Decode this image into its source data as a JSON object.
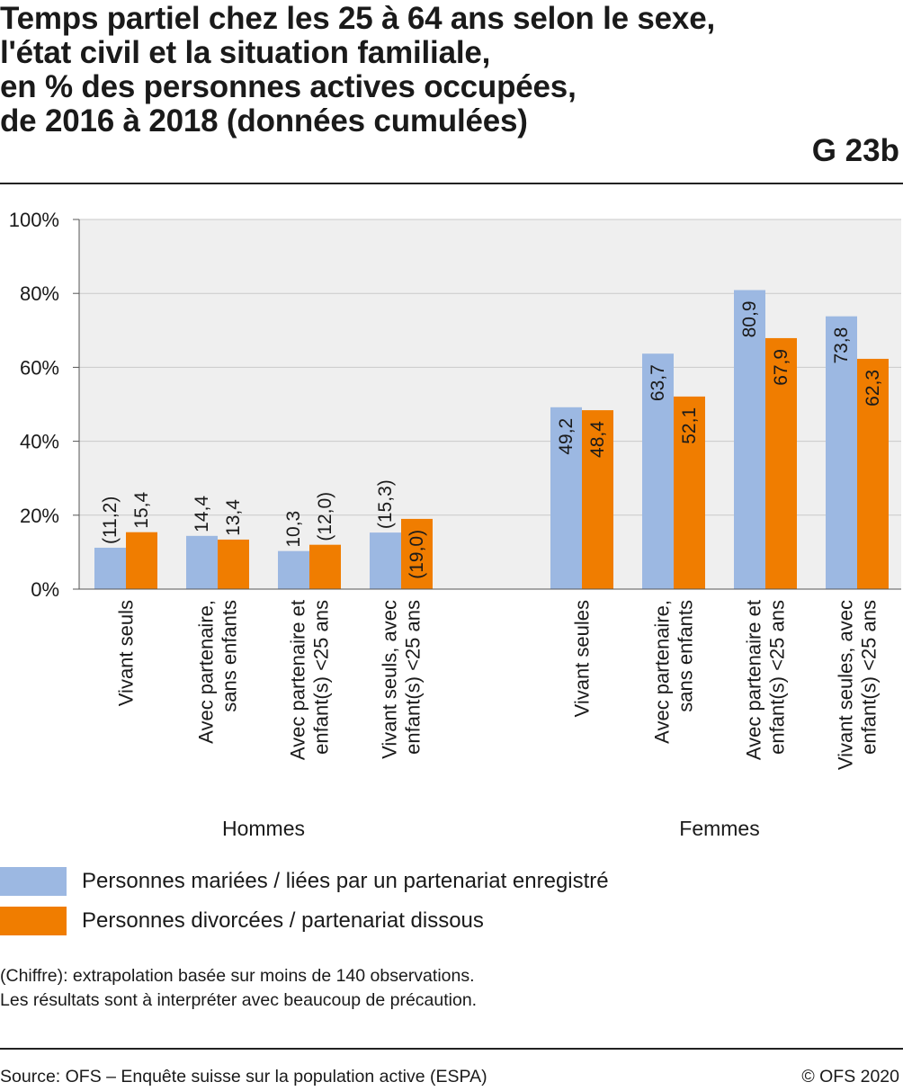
{
  "header": {
    "title_lines": [
      "Temps partiel chez les 25 à 64 ans selon le sexe,",
      "l'état civil et la situation familiale,",
      "en % des personnes actives occupées,",
      "de 2016 à 2018 (données cumulées)"
    ],
    "code": "G 23b"
  },
  "chart_data": {
    "type": "bar",
    "ylim": [
      0,
      100
    ],
    "y_ticks": [
      "0%",
      "20%",
      "40%",
      "60%",
      "80%",
      "100%"
    ],
    "grid": true,
    "legend_position": "bottom",
    "groups": [
      {
        "name": "Hommes",
        "categories": [
          "Vivant seuls",
          "Avec partenaire,\nsans enfants",
          "Avec partenaire et\nenfant(s) <25 ans",
          "Vivant seuls, avec\nenfant(s) <25 ans"
        ]
      },
      {
        "name": "Femmes",
        "categories": [
          "Vivant seules",
          "Avec partenaire,\nsans enfants",
          "Avec partenaire et\nenfant(s) <25 ans",
          "Vivant seules, avec\nenfant(s) <25 ans"
        ]
      }
    ],
    "series": [
      {
        "name": "Personnes mariées / liées par un partenariat enregistré",
        "color": "#9cb8e2",
        "values": [
          11.2,
          14.4,
          10.3,
          15.3,
          49.2,
          63.7,
          80.9,
          73.8
        ],
        "labels": [
          "(11,2)",
          "14,4",
          "10,3",
          "(15,3)",
          "49,2",
          "63,7",
          "80,9",
          "73,8"
        ]
      },
      {
        "name": "Personnes divorcées / partenariat dissous",
        "color": "#f07d00",
        "values": [
          15.4,
          13.4,
          12.0,
          19.0,
          48.4,
          52.1,
          67.9,
          62.3
        ],
        "labels": [
          "15,4",
          "13,4",
          "(12,0)",
          "(19,0)",
          "48,4",
          "52,1",
          "67,9",
          "62,3"
        ]
      }
    ]
  },
  "notes": [
    "(Chiffre): extrapolation basée sur moins de 140 observations.",
    "Les résultats sont à interpréter avec beaucoup de précaution."
  ],
  "source": "Source: OFS – Enquête suisse sur la population active (ESPA)",
  "copyright": "© OFS 2020"
}
